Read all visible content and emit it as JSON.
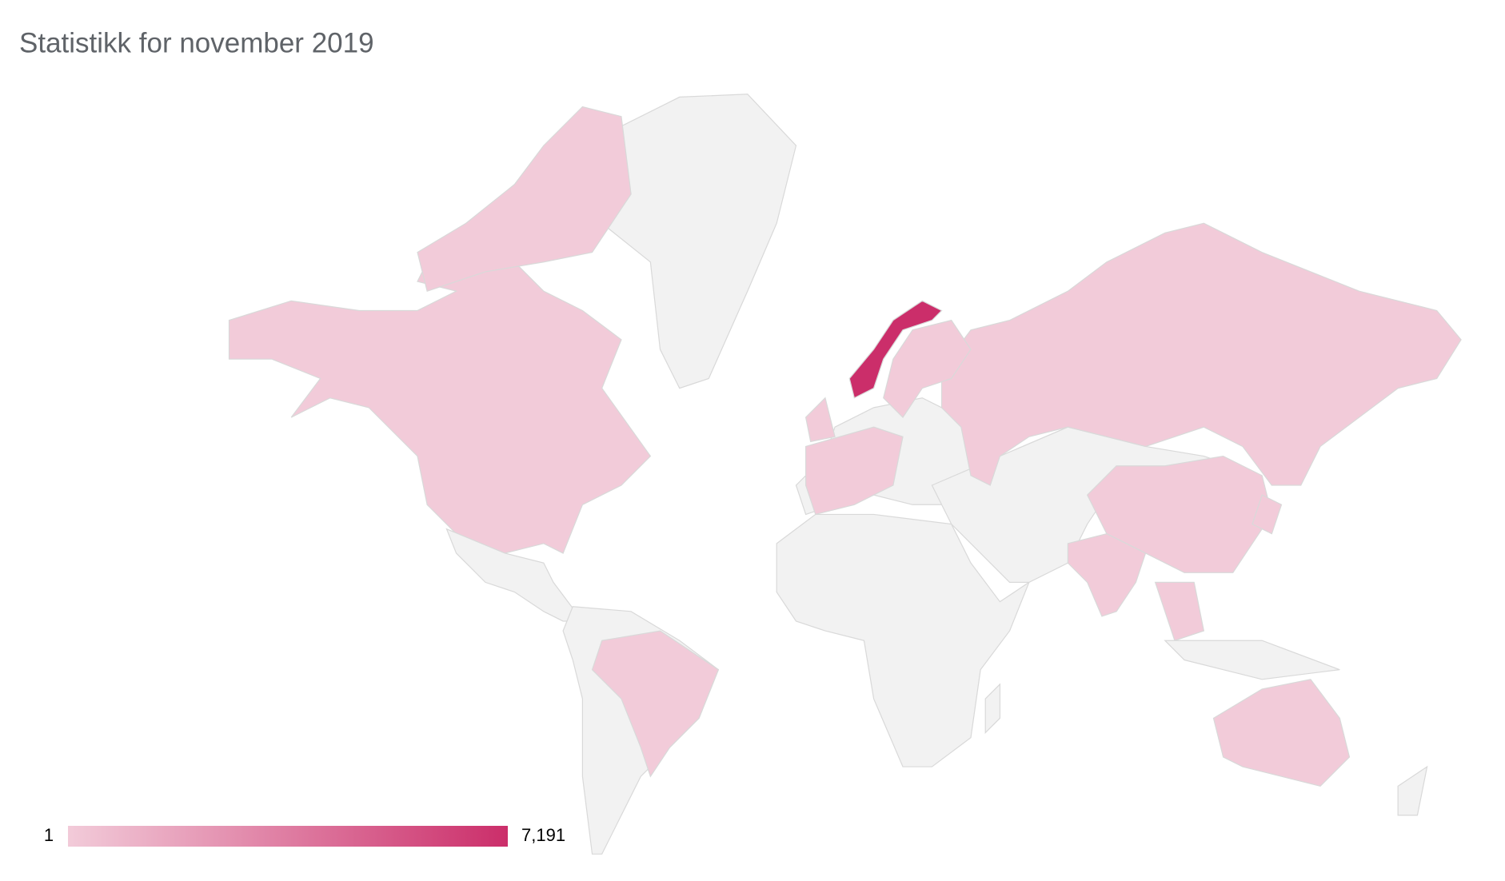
{
  "chart_data": {
    "type": "choropleth",
    "title": "Statistikk for november 2019",
    "colorscale": {
      "min": 1,
      "max": {
        "value": 7191,
        "label": "7,191"
      },
      "min_color": "#f2cbd9",
      "max_color": "#cb2e6a"
    },
    "no_data_color": "#f2f2f2",
    "border_color": "#d9d9d9"
  }
}
